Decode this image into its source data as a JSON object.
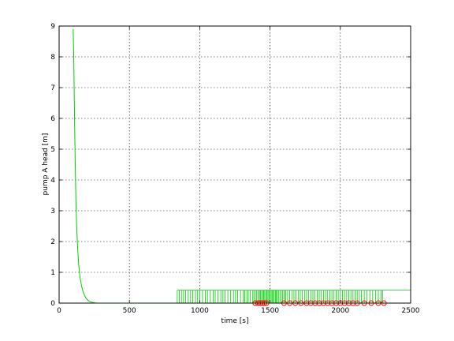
{
  "chart_data": {
    "type": "line",
    "title": "",
    "xlabel": "time [s]",
    "ylabel": "pump A head [m]",
    "xlim": [
      0,
      2500
    ],
    "ylim": [
      0,
      9
    ],
    "xticks": [
      0,
      500,
      1000,
      1500,
      2000,
      2500
    ],
    "yticks": [
      0,
      1,
      2,
      3,
      4,
      5,
      6,
      7,
      8,
      9
    ],
    "grid": true,
    "series": [
      {
        "color": "#00d000",
        "style": "line",
        "x": [
          100,
          104,
          108,
          112,
          116,
          120,
          125,
          130,
          135,
          140,
          150,
          160,
          170,
          180,
          190,
          200,
          215,
          230,
          250,
          270,
          300,
          400,
          600,
          840
        ],
        "y": [
          8.9,
          8.0,
          6.6,
          5.3,
          4.2,
          3.2,
          2.5,
          1.95,
          1.55,
          1.2,
          0.8,
          0.55,
          0.38,
          0.26,
          0.17,
          0.11,
          0.06,
          0.03,
          0.01,
          0.0,
          0.0,
          0.0,
          0.0,
          0.0
        ]
      },
      {
        "color": "#00d000",
        "style": "switching",
        "level": 0.42,
        "switch_times": [
          840,
          855,
          870,
          885,
          900,
          918,
          935,
          950,
          970,
          985,
          1000,
          1020,
          1040,
          1055,
          1075,
          1095,
          1110,
          1130,
          1150,
          1165,
          1180,
          1200,
          1220,
          1240,
          1255,
          1270,
          1290,
          1310,
          1320,
          1335,
          1345,
          1360,
          1375,
          1385,
          1395,
          1405,
          1415,
          1425,
          1432,
          1440,
          1448,
          1455,
          1462,
          1470,
          1478,
          1485,
          1492,
          1500,
          1508,
          1515,
          1522,
          1530,
          1538,
          1545,
          1552,
          1560,
          1570,
          1580,
          1590,
          1600,
          1612,
          1625,
          1640,
          1655,
          1670,
          1685,
          1700,
          1715,
          1730,
          1745,
          1760,
          1775,
          1790,
          1805,
          1820,
          1835,
          1850,
          1865,
          1880,
          1895,
          1910,
          1925,
          1940,
          1955,
          1970,
          1985,
          2000,
          2015,
          2030,
          2045,
          2060,
          2075,
          2090,
          2105,
          2120,
          2135,
          2150,
          2170,
          2190,
          2210,
          2230,
          2250,
          2270,
          2290,
          2300
        ],
        "end_x": 2500
      },
      {
        "color": "#ff0000",
        "style": "markers",
        "marker": "circle",
        "x": [
          1395,
          1415,
          1430,
          1445,
          1460,
          1475,
          1600,
          1640,
          1680,
          1720,
          1760,
          1790,
          1820,
          1850,
          1880,
          1910,
          1940,
          1970,
          2000,
          2030,
          2060,
          2090,
          2120,
          2170,
          2220,
          2270,
          2310
        ],
        "y": [
          0,
          0,
          0,
          0,
          0,
          0,
          0,
          0,
          0,
          0,
          0,
          0,
          0,
          0,
          0,
          0,
          0,
          0,
          0,
          0,
          0,
          0,
          0,
          0,
          0,
          0,
          0
        ]
      }
    ]
  }
}
